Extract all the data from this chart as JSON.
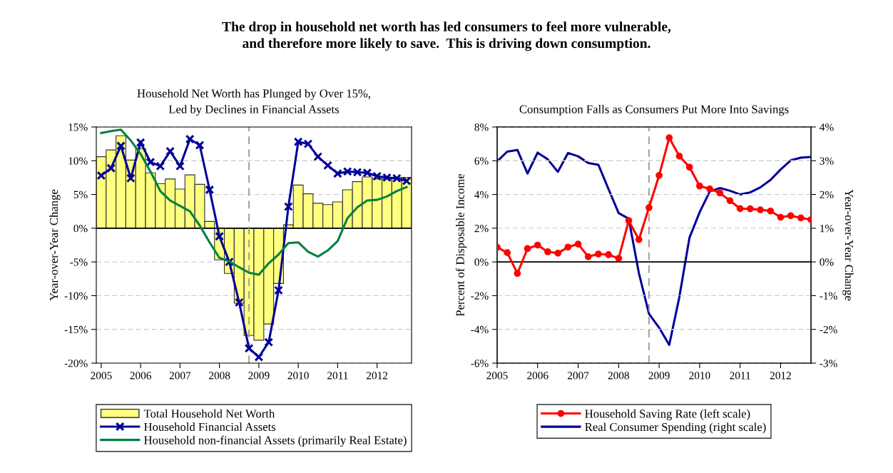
{
  "chart_data": [
    {
      "type": "bar",
      "title": "Household Net Worth has Plunged by Over 15%,\nLed by Declines in Financial Assets",
      "annotations": [
        "The drop in household net worth has led consumers to feel more vulnerable,\nand therefore more likely to save.  This is driving down consumption."
      ],
      "ylabel": "Year-over-Year Change",
      "x": [
        2005,
        2005.25,
        2005.5,
        2005.75,
        2006,
        2006.25,
        2006.5,
        2006.75,
        2007,
        2007.25,
        2007.5,
        2007.75,
        2008,
        2008.25,
        2008.5,
        2008.75,
        2009,
        2009.25,
        2009.5,
        2009.75,
        2010,
        2010.25,
        2010.5,
        2010.75,
        2011,
        2011.25,
        2011.5,
        2011.75,
        2012,
        2012.25,
        2012.5,
        2012.75
      ],
      "series": [
        {
          "name": "Total Household Net Worth",
          "type": "bar",
          "color": "#ffff80",
          "values": [
            10.6,
            11.6,
            13.7,
            10.1,
            11.8,
            8.2,
            6.6,
            7.3,
            5.8,
            7.9,
            6.5,
            1.0,
            -4.7,
            -6.7,
            -11.1,
            -15.9,
            -16.6,
            -14.2,
            -8.2,
            0.5,
            6.4,
            5.1,
            3.7,
            3.5,
            3.9,
            5.7,
            6.9,
            7.6,
            7.3,
            7.3,
            7.5,
            7.5
          ]
        },
        {
          "name": "Household Financial Assets",
          "type": "line",
          "marker": "cross",
          "color": "#000099",
          "values": [
            7.8,
            8.9,
            12.2,
            7.4,
            12.7,
            9.8,
            9.2,
            11.4,
            9.2,
            13.2,
            12.3,
            5.7,
            -1.2,
            -5.0,
            -11.0,
            -17.8,
            -19.1,
            -16.9,
            -9.2,
            3.2,
            12.8,
            12.5,
            10.6,
            9.3,
            8.1,
            8.4,
            8.3,
            8.2,
            7.7,
            7.5,
            7.4,
            7.0
          ]
        },
        {
          "name": "Household non-financial Assets (primarily Real Estate)",
          "type": "line",
          "color": "#008040",
          "values": [
            14.1,
            14.4,
            14.6,
            13.0,
            11.0,
            8.4,
            5.5,
            4.1,
            3.3,
            2.5,
            0.4,
            -2.1,
            -4.4,
            -4.9,
            -5.8,
            -6.6,
            -6.9,
            -5.2,
            -3.9,
            -2.2,
            -2.1,
            -3.5,
            -4.2,
            -3.3,
            -1.9,
            1.5,
            3.1,
            4.1,
            4.2,
            4.7,
            5.5,
            6.1
          ]
        }
      ],
      "xlim": [
        2004.875,
        2012.875
      ],
      "xticks": [
        2005,
        2006,
        2007,
        2008,
        2009,
        2010,
        2011,
        2012
      ],
      "ylim": [
        -20,
        15
      ],
      "yticks": [
        {
          "value": -20,
          "label": "-20%"
        },
        {
          "value": -15,
          "label": "-15%"
        },
        {
          "value": -10,
          "label": "-10%"
        },
        {
          "value": -5,
          "label": "-5%"
        },
        {
          "value": 0,
          "label": "0%"
        },
        {
          "value": 5,
          "label": "5%"
        },
        {
          "value": 10,
          "label": "10%"
        },
        {
          "value": 15,
          "label": "15%"
        }
      ],
      "ref_lines": [
        {
          "axis": "y",
          "value": 0,
          "color": "#000000",
          "line_style": "solid"
        },
        {
          "axis": "x",
          "value": 2008.75,
          "color": "#999999",
          "line_style": "dashed"
        }
      ],
      "grid": "y",
      "legend": "bottom"
    },
    {
      "type": "line",
      "title": "Consumption Falls as Consumers Put More Into Savings",
      "ylabel": "Percent of Disposable Income",
      "y2label": "Year-over-Year Change",
      "x": [
        2005,
        2005.25,
        2005.5,
        2005.75,
        2006,
        2006.25,
        2006.5,
        2006.75,
        2007,
        2007.25,
        2007.5,
        2007.75,
        2008,
        2008.25,
        2008.5,
        2008.75,
        2009,
        2009.25,
        2009.5,
        2009.75,
        2010,
        2010.25,
        2010.5,
        2010.75,
        2011,
        2011.25,
        2011.5,
        2011.75,
        2012,
        2012.25,
        2012.5,
        2012.75
      ],
      "series": [
        {
          "name": "Household Saving Rate (left scale)",
          "marker": "circle",
          "color": "#ff0000",
          "values": [
            0.87,
            0.55,
            -0.68,
            0.79,
            1.0,
            0.6,
            0.52,
            0.88,
            1.06,
            0.31,
            0.47,
            0.43,
            0.21,
            2.45,
            1.32,
            3.22,
            5.13,
            7.36,
            6.27,
            5.62,
            4.5,
            4.33,
            4.09,
            3.63,
            3.16,
            3.15,
            3.09,
            3.02,
            2.65,
            2.74,
            2.61,
            2.51
          ]
        },
        {
          "name": "Real Consumer Spending (right scale)",
          "axis": "y2",
          "color": "#000099",
          "values": [
            2.98,
            3.27,
            3.32,
            2.62,
            3.24,
            3.04,
            2.67,
            3.23,
            3.13,
            2.93,
            2.88,
            2.16,
            1.45,
            1.28,
            -0.33,
            -1.54,
            -1.95,
            -2.46,
            -1.04,
            0.72,
            1.47,
            2.09,
            2.19,
            2.11,
            2.0,
            2.06,
            2.21,
            2.43,
            2.74,
            3.01,
            3.09,
            3.11
          ]
        }
      ],
      "xlim": [
        2005,
        2012.75
      ],
      "xticks": [
        2005,
        2006,
        2007,
        2008,
        2009,
        2010,
        2011,
        2012
      ],
      "ylim": [
        -6,
        8
      ],
      "yticks": [
        {
          "value": -6,
          "label": "-6%"
        },
        {
          "value": -4,
          "label": "-4%"
        },
        {
          "value": -2,
          "label": "-2%"
        },
        {
          "value": 0,
          "label": "0%"
        },
        {
          "value": 2,
          "label": "2%"
        },
        {
          "value": 4,
          "label": "4%"
        },
        {
          "value": 6,
          "label": "6%"
        },
        {
          "value": 8,
          "label": "8%"
        }
      ],
      "y2lim": [
        -3,
        4
      ],
      "y2ticks": [
        {
          "value": -3,
          "label": "-3%"
        },
        {
          "value": -2,
          "label": "-2%"
        },
        {
          "value": -1,
          "label": "-1%"
        },
        {
          "value": 0,
          "label": "0%"
        },
        {
          "value": 1,
          "label": "1%"
        },
        {
          "value": 2,
          "label": "2%"
        },
        {
          "value": 3,
          "label": "3%"
        },
        {
          "value": 4,
          "label": "4%"
        }
      ],
      "ref_lines": [
        {
          "axis": "y",
          "value": 0,
          "color": "#000000",
          "line_style": "solid"
        },
        {
          "axis": "x",
          "value": 2008.75,
          "color": "#999999",
          "line_style": "dashed"
        }
      ],
      "grid": "y",
      "legend": "bottom"
    }
  ]
}
